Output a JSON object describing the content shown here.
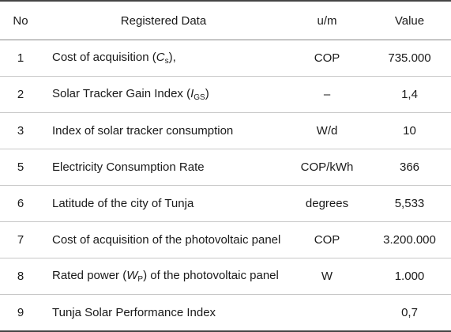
{
  "table": {
    "headers": {
      "no": "No",
      "data": "Registered Data",
      "unit": "u/m",
      "value": "Value"
    },
    "rows": [
      {
        "no": "1",
        "pre": "Cost of acquisition (",
        "sym": "C",
        "sub": "s",
        "post": "),",
        "unit": "COP",
        "value": "735.000"
      },
      {
        "no": "2",
        "pre": "Solar Tracker Gain Index (",
        "sym": "I",
        "sub": "GS",
        "post": ")",
        "unit": "–",
        "value": "1,4"
      },
      {
        "no": "3",
        "pre": "Index of solar tracker consumption",
        "sym": "",
        "sub": "",
        "post": "",
        "unit": "W/d",
        "value": "10"
      },
      {
        "no": "5",
        "pre": "Electricity Consumption Rate",
        "sym": "",
        "sub": "",
        "post": "",
        "unit": "COP/kWh",
        "value": "366"
      },
      {
        "no": "6",
        "pre": "Latitude of the city of Tunja",
        "sym": "",
        "sub": "",
        "post": "",
        "unit": "degrees",
        "value": "5,533"
      },
      {
        "no": "7",
        "pre": "Cost of acquisition of the photovoltaic panel",
        "sym": "",
        "sub": "",
        "post": "",
        "unit": "COP",
        "value": "3.200.000"
      },
      {
        "no": "8",
        "pre": "Rated power (",
        "sym": "W",
        "sub": "P",
        "post": ") of the photovoltaic panel",
        "unit": "W",
        "value": "1.000"
      },
      {
        "no": "9",
        "pre": "Tunja Solar Performance Index",
        "sym": "",
        "sub": "",
        "post": "",
        "unit": "",
        "value": "0,7"
      }
    ]
  }
}
